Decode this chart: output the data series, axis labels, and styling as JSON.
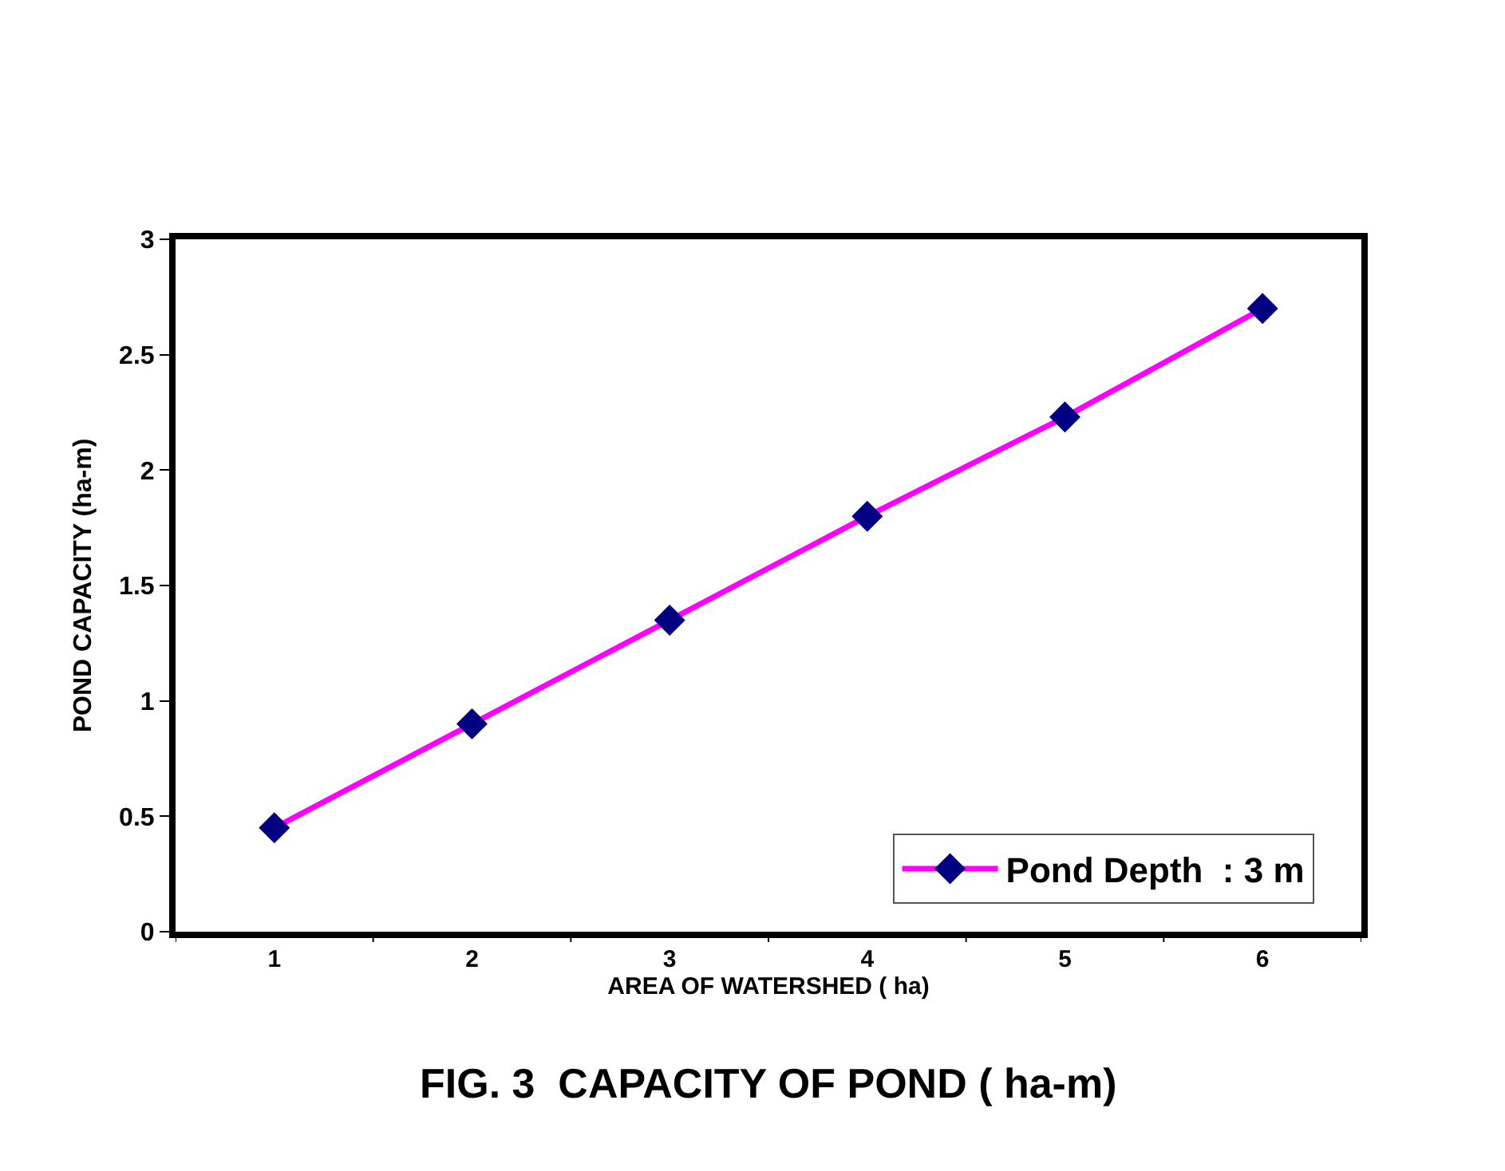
{
  "chart_data": {
    "type": "line",
    "categories": [
      "1",
      "2",
      "3",
      "4",
      "5",
      "6"
    ],
    "series": [
      {
        "name": "Pond Depth  : 3 m",
        "color": "#ff00ff",
        "values": [
          0.45,
          0.9,
          1.35,
          1.8,
          2.23,
          2.7
        ]
      }
    ],
    "marker": "diamond",
    "line_style": "solid",
    "xlabel": "AREA OF WATERSHED ( ha)",
    "ylabel": "POND CAPACITY (ha-m)",
    "ylim": [
      0,
      3
    ],
    "yticks": [
      0,
      0.5,
      1,
      1.5,
      2,
      2.5,
      3
    ],
    "annotations": [
      "FIG. 3  CAPACITY OF POND ( ha-m)"
    ],
    "legend": "bottom right"
  }
}
